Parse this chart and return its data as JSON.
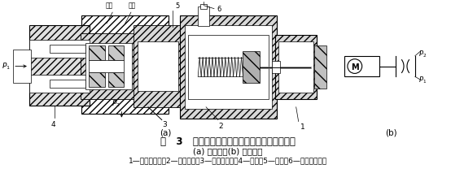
{
  "title_line": "图   3   步进电动机直接驱动的增量式数字流量阀",
  "subtitle_line": "(a) 结构图；(b) 图形符号",
  "caption_line": "1—步进电动机；2—滚珠丝杆；3—节流阀阀心；4—阀套；5—连杆；6—零位移传感器",
  "label_a": "(a)",
  "label_b": "(b)",
  "bg_color": "#ffffff",
  "text_color": "#000000",
  "fig_width": 5.54,
  "fig_height": 2.3,
  "dpi": 100,
  "hatch_color": "#555555"
}
